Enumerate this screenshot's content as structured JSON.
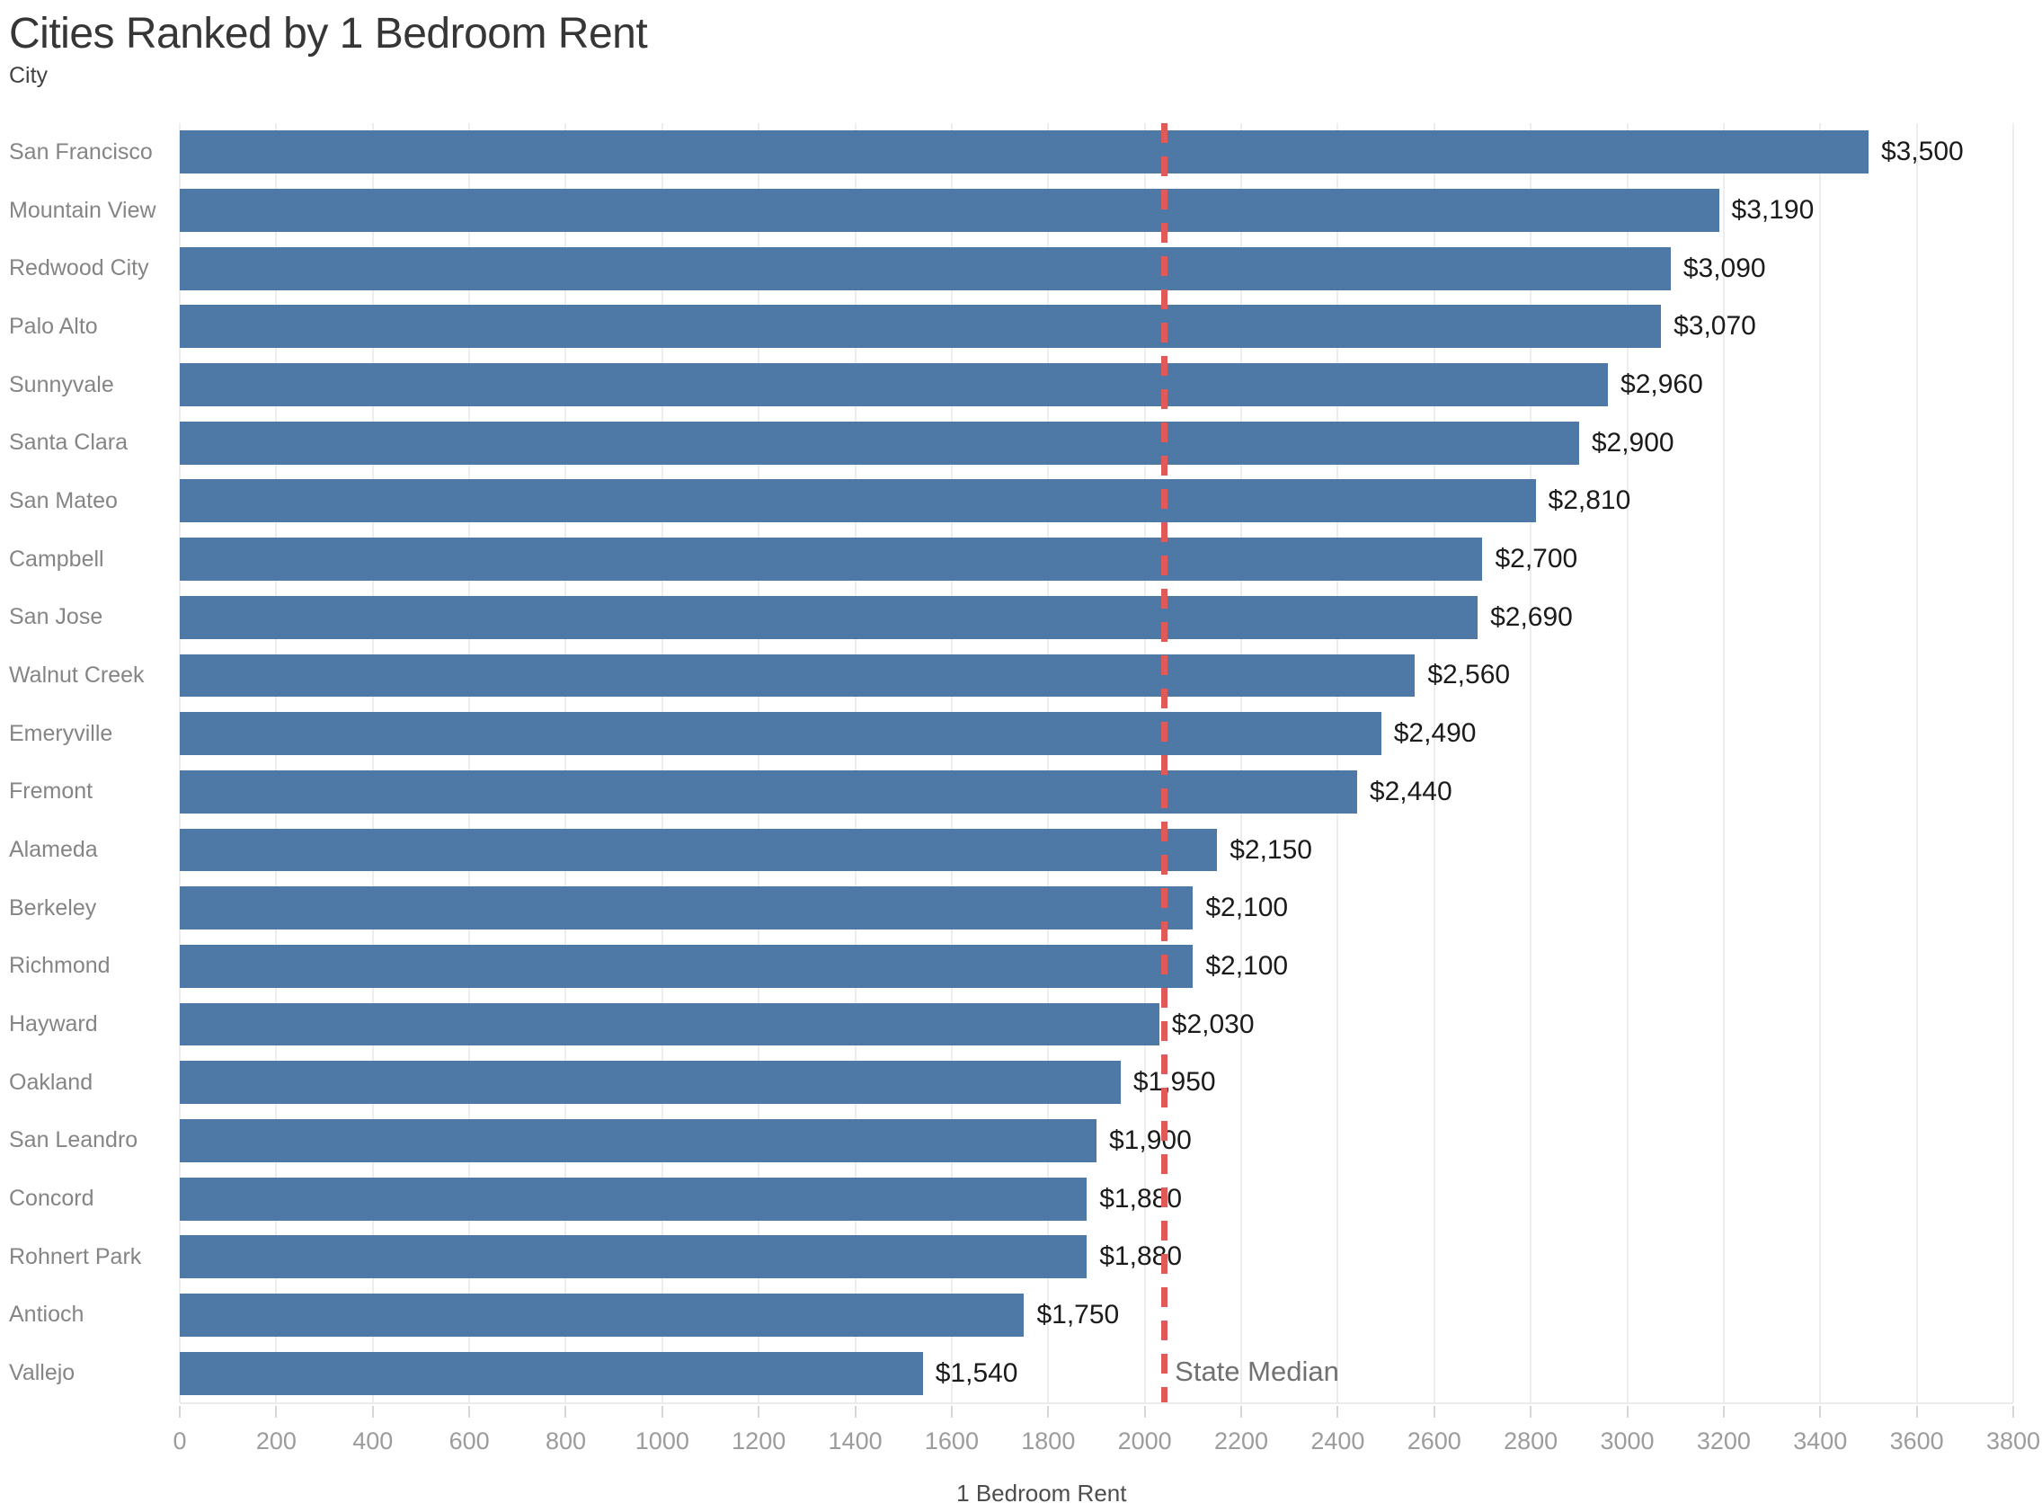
{
  "title": "Cities Ranked by 1 Bedroom Rent",
  "y_axis_header": "City",
  "x_axis_title": "1 Bedroom Rent",
  "colors": {
    "bar": "#4e79a7",
    "reference_line": "#e15a5a",
    "gridline": "#ededed"
  },
  "chart_data": {
    "type": "bar",
    "orientation": "horizontal",
    "title": "Cities Ranked by 1 Bedroom Rent",
    "xlabel": "1 Bedroom Rent",
    "ylabel": "City",
    "xlim": [
      0,
      3800
    ],
    "tick_step": 200,
    "grid": true,
    "categories": [
      "San Francisco",
      "Mountain View",
      "Redwood City",
      "Palo Alto",
      "Sunnyvale",
      "Santa Clara",
      "San Mateo",
      "Campbell",
      "San Jose",
      "Walnut Creek",
      "Emeryville",
      "Fremont",
      "Alameda",
      "Berkeley",
      "Richmond",
      "Hayward",
      "Oakland",
      "San Leandro",
      "Concord",
      "Rohnert Park",
      "Antioch",
      "Vallejo"
    ],
    "values": [
      3500,
      3190,
      3090,
      3070,
      2960,
      2900,
      2810,
      2700,
      2690,
      2560,
      2490,
      2440,
      2150,
      2100,
      2100,
      2030,
      1950,
      1900,
      1880,
      1880,
      1750,
      1540
    ],
    "value_labels": [
      "$3,500",
      "$3,190",
      "$3,090",
      "$3,070",
      "$2,960",
      "$2,900",
      "$2,810",
      "$2,700",
      "$2,690",
      "$2,560",
      "$2,490",
      "$2,440",
      "$2,150",
      "$2,100",
      "$2,100",
      "$2,030",
      "$1,950",
      "$1,900",
      "$1,880",
      "$1,880",
      "$1,750",
      "$1,540"
    ],
    "annotations": [
      {
        "type": "vline",
        "label": "State Median",
        "value": 2040
      }
    ]
  }
}
